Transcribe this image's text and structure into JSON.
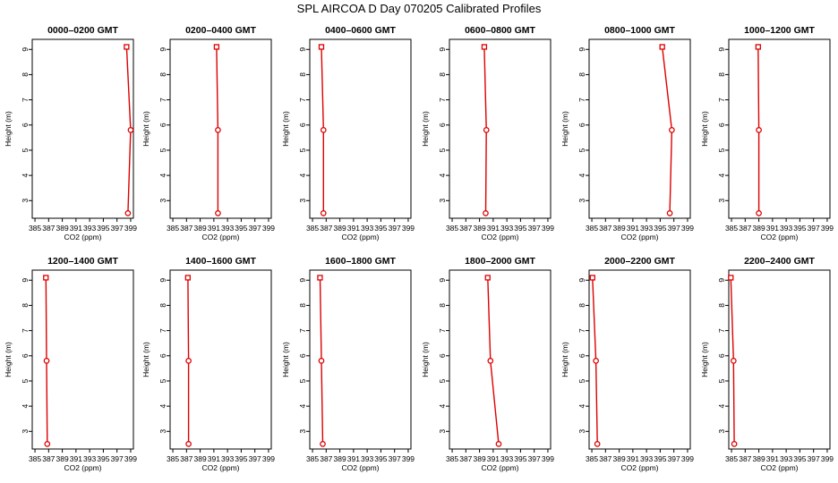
{
  "title": "SPL AIRCOA D  Day 070205  Calibrated Profiles",
  "colors": {
    "profile": "#dd0000",
    "axis": "#000000"
  },
  "chart_data": [
    {
      "type": "line",
      "title": "0000–0200 GMT",
      "xlabel": "CO2 (ppm)",
      "ylabel": "Height (m)",
      "xlim": [
        384.6,
        399.4
      ],
      "ylim": [
        2.3,
        9.4
      ],
      "xticks": [
        385,
        387,
        389,
        391,
        393,
        395,
        397,
        399
      ],
      "xtick_labels": [
        "385",
        "387",
        "389",
        "391",
        "393",
        "395",
        "397",
        "399"
      ],
      "yticks": [
        3,
        4,
        5,
        6,
        7,
        8,
        9
      ],
      "grid": false,
      "x": [
        398.4,
        399.0,
        398.6
      ],
      "y": [
        9.1,
        5.8,
        2.5
      ]
    },
    {
      "type": "line",
      "title": "0200–0400 GMT",
      "xlabel": "CO2 (ppm)",
      "ylabel": "Height (m)",
      "xlim": [
        384.6,
        399.4
      ],
      "ylim": [
        2.3,
        9.4
      ],
      "xticks": [
        385,
        387,
        389,
        391,
        393,
        395,
        397,
        399
      ],
      "xtick_labels": [
        "385",
        "387",
        "389",
        "391",
        "393",
        "395",
        "397",
        "399"
      ],
      "yticks": [
        3,
        4,
        5,
        6,
        7,
        8,
        9
      ],
      "grid": false,
      "x": [
        391.4,
        391.6,
        391.6
      ],
      "y": [
        9.1,
        5.8,
        2.5
      ]
    },
    {
      "type": "line",
      "title": "0400–0600 GMT",
      "xlabel": "CO2 (ppm)",
      "ylabel": "Height (m)",
      "xlim": [
        384.6,
        399.4
      ],
      "ylim": [
        2.3,
        9.4
      ],
      "xticks": [
        385,
        387,
        389,
        391,
        393,
        395,
        397,
        399
      ],
      "xtick_labels": [
        "385",
        "387",
        "389",
        "391",
        "393",
        "395",
        "397",
        "399"
      ],
      "yticks": [
        3,
        4,
        5,
        6,
        7,
        8,
        9
      ],
      "grid": false,
      "x": [
        386.3,
        386.6,
        386.6
      ],
      "y": [
        9.1,
        5.8,
        2.5
      ]
    },
    {
      "type": "line",
      "title": "0600–0800 GMT",
      "xlabel": "CO2 (ppm)",
      "ylabel": "Height (m)",
      "xlim": [
        384.6,
        399.4
      ],
      "ylim": [
        2.3,
        9.4
      ],
      "xticks": [
        385,
        387,
        389,
        391,
        393,
        395,
        397,
        399
      ],
      "xtick_labels": [
        "385",
        "387",
        "389",
        "391",
        "393",
        "395",
        "397",
        "399"
      ],
      "yticks": [
        3,
        4,
        5,
        6,
        7,
        8,
        9
      ],
      "grid": false,
      "x": [
        389.7,
        390.0,
        389.9
      ],
      "y": [
        9.1,
        5.8,
        2.5
      ]
    },
    {
      "type": "line",
      "title": "0800–1000 GMT",
      "xlabel": "CO2 (ppm)",
      "ylabel": "Height (m)",
      "xlim": [
        384.6,
        399.4
      ],
      "ylim": [
        2.3,
        9.4
      ],
      "xticks": [
        385,
        387,
        389,
        391,
        393,
        395,
        397,
        399
      ],
      "xtick_labels": [
        "385",
        "387",
        "389",
        "391",
        "393",
        "395",
        "397",
        "399"
      ],
      "yticks": [
        3,
        4,
        5,
        6,
        7,
        8,
        9
      ],
      "grid": false,
      "x": [
        395.3,
        396.7,
        396.4
      ],
      "y": [
        9.1,
        5.8,
        2.5
      ]
    },
    {
      "type": "line",
      "title": "1000–1200 GMT",
      "xlabel": "CO2 (ppm)",
      "ylabel": "Height (m)",
      "xlim": [
        384.6,
        399.4
      ],
      "ylim": [
        2.3,
        9.4
      ],
      "xticks": [
        385,
        387,
        389,
        391,
        393,
        395,
        397,
        399
      ],
      "xtick_labels": [
        "385",
        "387",
        "389",
        "391",
        "393",
        "395",
        "397",
        "399"
      ],
      "yticks": [
        3,
        4,
        5,
        6,
        7,
        8,
        9
      ],
      "grid": false,
      "x": [
        388.9,
        389.0,
        389.0
      ],
      "y": [
        9.1,
        5.8,
        2.5
      ]
    },
    {
      "type": "line",
      "title": "1200–1400 GMT",
      "xlabel": "CO2 (ppm)",
      "ylabel": "Height (m)",
      "xlim": [
        384.6,
        399.4
      ],
      "ylim": [
        2.3,
        9.4
      ],
      "xticks": [
        385,
        387,
        389,
        391,
        393,
        395,
        397,
        399
      ],
      "xtick_labels": [
        "385",
        "387",
        "389",
        "391",
        "393",
        "395",
        "397",
        "399"
      ],
      "yticks": [
        3,
        4,
        5,
        6,
        7,
        8,
        9
      ],
      "grid": false,
      "x": [
        386.6,
        386.7,
        386.8
      ],
      "y": [
        9.1,
        5.8,
        2.5
      ]
    },
    {
      "type": "line",
      "title": "1400–1600 GMT",
      "xlabel": "CO2 (ppm)",
      "ylabel": "Height (m)",
      "xlim": [
        384.6,
        399.4
      ],
      "ylim": [
        2.3,
        9.4
      ],
      "xticks": [
        385,
        387,
        389,
        391,
        393,
        395,
        397,
        399
      ],
      "xtick_labels": [
        "385",
        "387",
        "389",
        "391",
        "393",
        "395",
        "397",
        "399"
      ],
      "yticks": [
        3,
        4,
        5,
        6,
        7,
        8,
        9
      ],
      "grid": false,
      "x": [
        387.2,
        387.3,
        387.3
      ],
      "y": [
        9.1,
        5.8,
        2.5
      ]
    },
    {
      "type": "line",
      "title": "1600–1800 GMT",
      "xlabel": "CO2 (ppm)",
      "ylabel": "Height (m)",
      "xlim": [
        384.6,
        399.4
      ],
      "ylim": [
        2.3,
        9.4
      ],
      "xticks": [
        385,
        387,
        389,
        391,
        393,
        395,
        397,
        399
      ],
      "xtick_labels": [
        "385",
        "387",
        "389",
        "391",
        "393",
        "395",
        "397",
        "399"
      ],
      "yticks": [
        3,
        4,
        5,
        6,
        7,
        8,
        9
      ],
      "grid": false,
      "x": [
        386.1,
        386.3,
        386.5
      ],
      "y": [
        9.1,
        5.8,
        2.5
      ]
    },
    {
      "type": "line",
      "title": "1800–2000 GMT",
      "xlabel": "CO2 (ppm)",
      "ylabel": "Height (m)",
      "xlim": [
        384.6,
        399.4
      ],
      "ylim": [
        2.3,
        9.4
      ],
      "xticks": [
        385,
        387,
        389,
        391,
        393,
        395,
        397,
        399
      ],
      "xtick_labels": [
        "385",
        "387",
        "389",
        "391",
        "393",
        "395",
        "397",
        "399"
      ],
      "yticks": [
        3,
        4,
        5,
        6,
        7,
        8,
        9
      ],
      "grid": false,
      "x": [
        390.2,
        390.6,
        391.8
      ],
      "y": [
        9.1,
        5.8,
        2.5
      ]
    },
    {
      "type": "line",
      "title": "2000–2200 GMT",
      "xlabel": "CO2 (ppm)",
      "ylabel": "Height (m)",
      "xlim": [
        384.6,
        399.4
      ],
      "ylim": [
        2.3,
        9.4
      ],
      "xticks": [
        385,
        387,
        389,
        391,
        393,
        395,
        397,
        399
      ],
      "xtick_labels": [
        "385",
        "387",
        "389",
        "391",
        "393",
        "395",
        "397",
        "399"
      ],
      "yticks": [
        3,
        4,
        5,
        6,
        7,
        8,
        9
      ],
      "grid": false,
      "x": [
        385.1,
        385.6,
        385.8
      ],
      "y": [
        9.1,
        5.8,
        2.5
      ]
    },
    {
      "type": "line",
      "title": "2200–2400 GMT",
      "xlabel": "CO2 (ppm)",
      "ylabel": "Height (m)",
      "xlim": [
        384.6,
        399.4
      ],
      "ylim": [
        2.3,
        9.4
      ],
      "xticks": [
        385,
        387,
        389,
        391,
        393,
        395,
        397,
        399
      ],
      "xtick_labels": [
        "385",
        "387",
        "389",
        "391",
        "393",
        "395",
        "397",
        "399"
      ],
      "yticks": [
        3,
        4,
        5,
        6,
        7,
        8,
        9
      ],
      "grid": false,
      "x": [
        384.9,
        385.3,
        385.4
      ],
      "y": [
        9.1,
        5.8,
        2.5
      ]
    }
  ]
}
